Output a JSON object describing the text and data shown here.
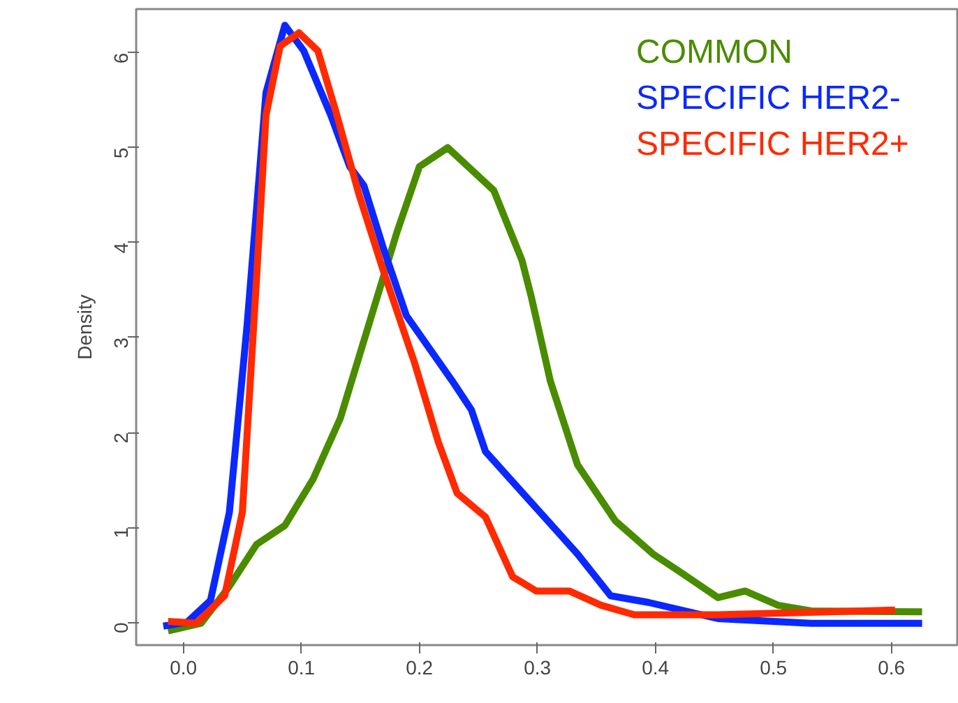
{
  "chart_data": {
    "type": "line",
    "ylabel": "Density",
    "xlim": [
      -0.04,
      0.657
    ],
    "ylim": [
      -0.24,
      6.46
    ],
    "xticks": [
      {
        "value": 0,
        "label": "0.0"
      },
      0.1,
      0.2,
      0.3,
      0.4,
      0.5,
      0.6
    ],
    "yticks": [
      0,
      1,
      2,
      3,
      4,
      5,
      6
    ],
    "grid": false,
    "legend": "top right",
    "marker": "none",
    "line_style": "solid",
    "series": [
      {
        "name": "COMMON",
        "color": "#4a8c00",
        "x": [
          -0.013,
          0.015,
          0.039,
          0.062,
          0.086,
          0.11,
          0.133,
          0.157,
          0.181,
          0.2,
          0.224,
          0.263,
          0.287,
          0.295,
          0.311,
          0.334,
          0.366,
          0.398,
          0.421,
          0.453,
          0.476,
          0.504,
          0.532,
          0.626
        ],
        "values": [
          -0.09,
          -0.01,
          0.38,
          0.82,
          1.02,
          1.51,
          2.15,
          3.13,
          4.11,
          4.8,
          5.0,
          4.55,
          3.81,
          3.42,
          2.54,
          1.66,
          1.07,
          0.72,
          0.53,
          0.26,
          0.33,
          0.18,
          0.12,
          0.11
        ]
      },
      {
        "name": "SPECIFIC HER2-",
        "color": "#0a28ff",
        "x": [
          -0.017,
          0.003,
          0.023,
          0.039,
          0.054,
          0.07,
          0.086,
          0.102,
          0.125,
          0.141,
          0.153,
          0.169,
          0.189,
          0.228,
          0.244,
          0.256,
          0.295,
          0.334,
          0.362,
          0.394,
          0.453,
          0.532,
          0.626
        ],
        "values": [
          -0.04,
          0.0,
          0.23,
          1.16,
          3.13,
          5.58,
          6.29,
          6.02,
          5.34,
          4.8,
          4.6,
          3.96,
          3.23,
          2.54,
          2.24,
          1.8,
          1.26,
          0.72,
          0.28,
          0.21,
          0.04,
          -0.01,
          -0.01
        ]
      },
      {
        "name": "SPECIFIC HER2+",
        "color": "#ff2a00",
        "x": [
          -0.013,
          0.011,
          0.035,
          0.05,
          0.062,
          0.07,
          0.082,
          0.098,
          0.114,
          0.129,
          0.149,
          0.169,
          0.196,
          0.216,
          0.232,
          0.256,
          0.279,
          0.299,
          0.327,
          0.354,
          0.382,
          0.453,
          0.603
        ],
        "values": [
          0.01,
          -0.01,
          0.28,
          1.16,
          3.62,
          5.34,
          6.07,
          6.21,
          6.02,
          5.39,
          4.5,
          3.72,
          2.73,
          1.9,
          1.36,
          1.11,
          0.48,
          0.33,
          0.33,
          0.18,
          0.08,
          0.08,
          0.13
        ]
      }
    ]
  }
}
